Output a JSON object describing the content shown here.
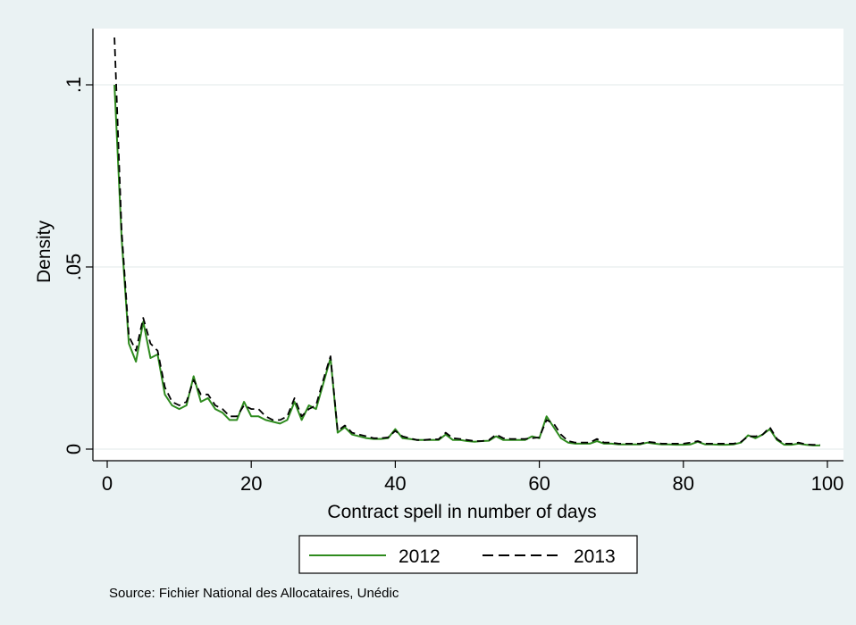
{
  "chart_data": {
    "type": "line",
    "title": "",
    "xlabel": "Contract spell in number of days",
    "ylabel": "Density",
    "xlim": [
      0,
      100
    ],
    "ylim": [
      0,
      0.115
    ],
    "xticks": [
      0,
      20,
      40,
      60,
      80,
      100
    ],
    "xtick_labels": [
      "0",
      "20",
      "40",
      "60",
      "80",
      "100"
    ],
    "yticks": [
      0,
      0.05,
      0.1
    ],
    "ytick_labels": [
      "0",
      ".05",
      ".1"
    ],
    "grid": "horizontal",
    "legend": "bottom",
    "background": "#eaf2f3",
    "x": [
      1,
      2,
      3,
      4,
      5,
      6,
      7,
      8,
      9,
      10,
      11,
      12,
      13,
      14,
      15,
      16,
      17,
      18,
      19,
      20,
      21,
      22,
      23,
      24,
      25,
      26,
      27,
      28,
      29,
      30,
      31,
      32,
      33,
      34,
      35,
      36,
      37,
      38,
      39,
      40,
      41,
      42,
      43,
      44,
      45,
      46,
      47,
      48,
      49,
      50,
      51,
      52,
      53,
      54,
      55,
      56,
      57,
      58,
      59,
      60,
      61,
      62,
      63,
      64,
      65,
      66,
      67,
      68,
      69,
      70,
      71,
      72,
      73,
      74,
      75,
      76,
      77,
      78,
      79,
      80,
      81,
      82,
      83,
      84,
      85,
      86,
      87,
      88,
      89,
      90,
      91,
      92,
      93,
      94,
      95,
      96,
      97,
      98,
      99
    ],
    "series": [
      {
        "name": "2012",
        "color": "#2e8b1e",
        "dash": "solid",
        "values": [
          0.1,
          0.058,
          0.029,
          0.024,
          0.035,
          0.025,
          0.026,
          0.015,
          0.012,
          0.011,
          0.012,
          0.02,
          0.013,
          0.014,
          0.011,
          0.01,
          0.008,
          0.008,
          0.013,
          0.009,
          0.009,
          0.008,
          0.0075,
          0.007,
          0.008,
          0.013,
          0.008,
          0.012,
          0.011,
          0.018,
          0.025,
          0.0045,
          0.006,
          0.004,
          0.0035,
          0.003,
          0.0028,
          0.0028,
          0.003,
          0.0055,
          0.003,
          0.0028,
          0.0025,
          0.0025,
          0.0025,
          0.0025,
          0.004,
          0.0025,
          0.0025,
          0.0022,
          0.002,
          0.0022,
          0.0023,
          0.0035,
          0.0025,
          0.0025,
          0.0025,
          0.0025,
          0.0035,
          0.003,
          0.009,
          0.006,
          0.003,
          0.0018,
          0.0015,
          0.0015,
          0.0015,
          0.0022,
          0.0015,
          0.0015,
          0.0013,
          0.0013,
          0.0013,
          0.0013,
          0.0018,
          0.0015,
          0.0013,
          0.0013,
          0.0012,
          0.0012,
          0.0013,
          0.002,
          0.0013,
          0.0013,
          0.0012,
          0.0012,
          0.0013,
          0.0018,
          0.0038,
          0.003,
          0.004,
          0.0055,
          0.0025,
          0.0012,
          0.0012,
          0.0015,
          0.0012,
          0.001,
          0.001
        ]
      },
      {
        "name": "2013",
        "color": "#000000",
        "dash": "dashed",
        "values": [
          0.113,
          0.06,
          0.031,
          0.027,
          0.036,
          0.029,
          0.027,
          0.017,
          0.013,
          0.012,
          0.013,
          0.019,
          0.015,
          0.015,
          0.012,
          0.011,
          0.009,
          0.009,
          0.012,
          0.011,
          0.011,
          0.009,
          0.008,
          0.008,
          0.009,
          0.014,
          0.009,
          0.011,
          0.012,
          0.019,
          0.0255,
          0.005,
          0.0065,
          0.0045,
          0.004,
          0.0035,
          0.003,
          0.003,
          0.0032,
          0.005,
          0.0035,
          0.003,
          0.0025,
          0.0025,
          0.0027,
          0.0027,
          0.0045,
          0.003,
          0.0028,
          0.0025,
          0.0022,
          0.0022,
          0.0025,
          0.004,
          0.003,
          0.0028,
          0.0028,
          0.0028,
          0.003,
          0.0032,
          0.008,
          0.007,
          0.004,
          0.0022,
          0.0018,
          0.0018,
          0.0018,
          0.0028,
          0.0018,
          0.0018,
          0.0015,
          0.0015,
          0.0015,
          0.0015,
          0.002,
          0.0018,
          0.0015,
          0.0015,
          0.0015,
          0.0015,
          0.0018,
          0.0022,
          0.0015,
          0.0015,
          0.0015,
          0.0015,
          0.0015,
          0.002,
          0.0035,
          0.0035,
          0.004,
          0.006,
          0.0028,
          0.0015,
          0.0015,
          0.0018,
          0.0013,
          0.0012,
          0.0012
        ]
      }
    ]
  },
  "source_note": "Source: Fichier National des Allocataires, Unédic"
}
